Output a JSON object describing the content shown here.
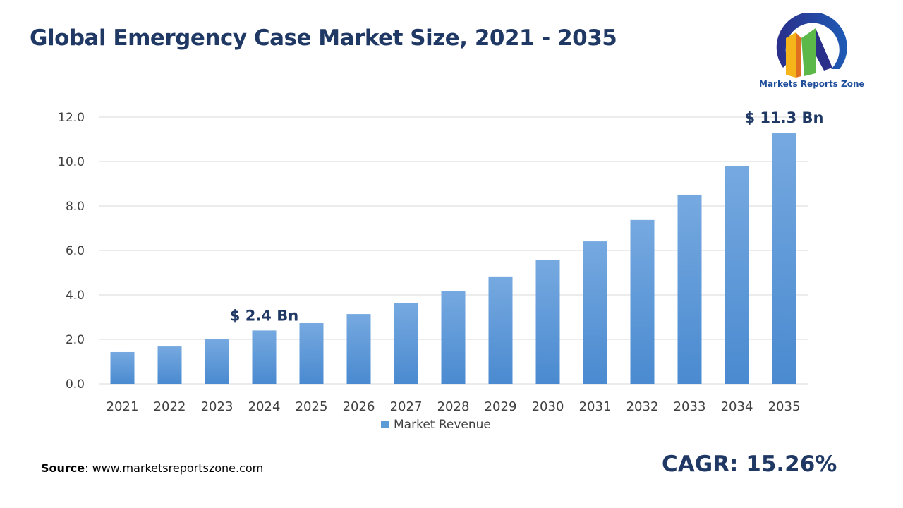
{
  "title": "Global Emergency Case Market Size, 2021 - 2035",
  "logo": {
    "text": "Markets Reports Zone"
  },
  "source": {
    "label": "Source",
    "link": "www.marketsreportszone.com"
  },
  "cagr": "CAGR: 15.26%",
  "colors": {
    "bar_top": "#76a9e0",
    "bar_bottom": "#4a8ad0",
    "title": "#1f3864"
  },
  "chart_data": {
    "type": "bar",
    "categories": [
      "2021",
      "2022",
      "2023",
      "2024",
      "2025",
      "2026",
      "2027",
      "2028",
      "2029",
      "2030",
      "2031",
      "2032",
      "2033",
      "2034",
      "2035"
    ],
    "series": [
      {
        "name": "Market Revenue",
        "values": [
          1.43,
          1.68,
          2.0,
          2.4,
          2.73,
          3.14,
          3.62,
          4.19,
          4.83,
          5.56,
          6.41,
          7.37,
          8.51,
          9.81,
          11.3
        ]
      }
    ],
    "ylim": [
      0,
      12
    ],
    "yticks": [
      "0.0",
      "2.0",
      "4.0",
      "6.0",
      "8.0",
      "10.0",
      "12.0"
    ],
    "grid": true,
    "legend": "bottom",
    "annotations": [
      {
        "category": "2024",
        "text": "$ 2.4 Bn"
      },
      {
        "category": "2035",
        "text": "$ 11.3 Bn"
      }
    ]
  }
}
